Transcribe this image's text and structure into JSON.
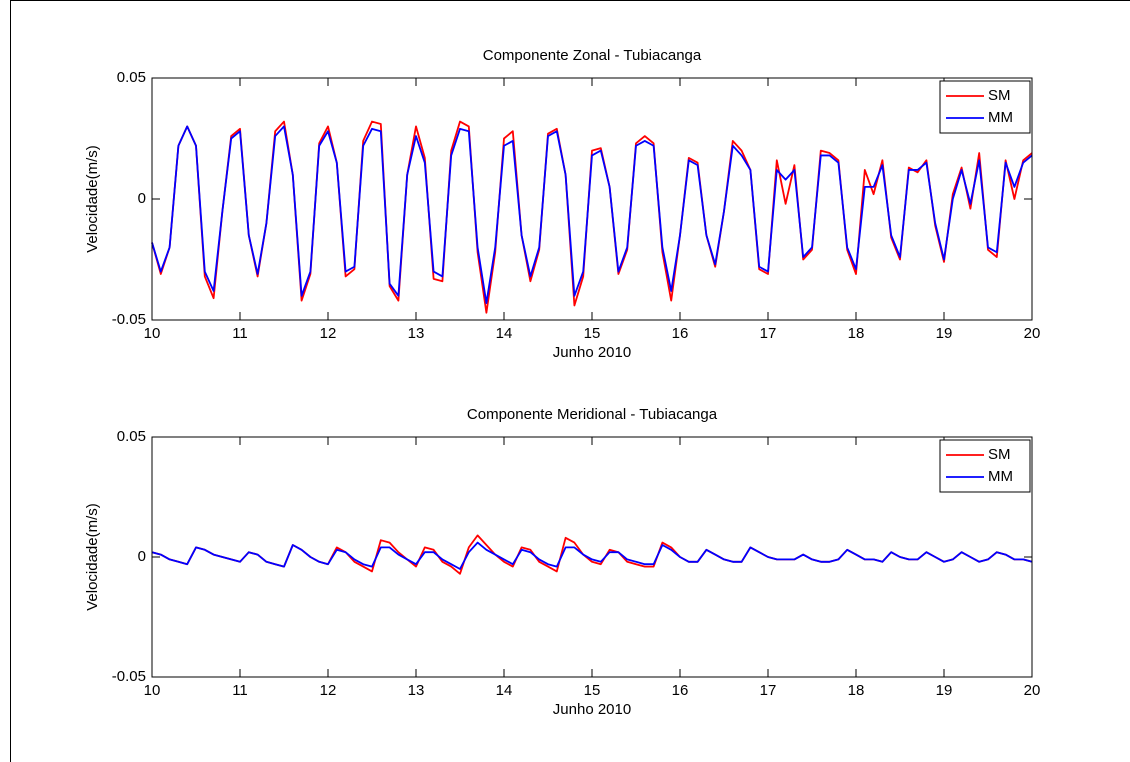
{
  "chart_data": [
    {
      "type": "line",
      "title": "Componente Zonal - Tubiacanga",
      "xlabel": "Junho 2010",
      "ylabel": "Velocidade(m/s)",
      "x": [
        10.0,
        10.1,
        10.2,
        10.3,
        10.4,
        10.5,
        10.6,
        10.7,
        10.8,
        10.9,
        11.0,
        11.1,
        11.2,
        11.3,
        11.4,
        11.5,
        11.6,
        11.7,
        11.8,
        11.9,
        12.0,
        12.1,
        12.2,
        12.3,
        12.4,
        12.5,
        12.6,
        12.7,
        12.8,
        12.9,
        13.0,
        13.1,
        13.2,
        13.3,
        13.4,
        13.5,
        13.6,
        13.7,
        13.8,
        13.9,
        14.0,
        14.1,
        14.2,
        14.3,
        14.4,
        14.5,
        14.6,
        14.7,
        14.8,
        14.9,
        15.0,
        15.1,
        15.2,
        15.3,
        15.4,
        15.5,
        15.6,
        15.7,
        15.8,
        15.9,
        16.0,
        16.1,
        16.2,
        16.3,
        16.4,
        16.5,
        16.6,
        16.7,
        16.8,
        16.9,
        17.0,
        17.1,
        17.2,
        17.3,
        17.4,
        17.5,
        17.6,
        17.7,
        17.8,
        17.9,
        18.0,
        18.1,
        18.2,
        18.3,
        18.4,
        18.5,
        18.6,
        18.7,
        18.8,
        18.9,
        19.0,
        19.1,
        19.2,
        19.3,
        19.4,
        19.5,
        19.6,
        19.7,
        19.8,
        19.9,
        20.0
      ],
      "series": [
        {
          "name": "SM",
          "color": "#ff0000",
          "values": [
            -0.018,
            -0.031,
            -0.02,
            0.022,
            0.03,
            0.022,
            -0.032,
            -0.041,
            -0.005,
            0.026,
            0.029,
            -0.015,
            -0.032,
            -0.01,
            0.028,
            0.032,
            0.01,
            -0.042,
            -0.031,
            0.023,
            0.03,
            0.015,
            -0.032,
            -0.029,
            0.024,
            0.032,
            0.031,
            -0.036,
            -0.042,
            0.01,
            0.03,
            0.017,
            -0.033,
            -0.034,
            0.02,
            0.032,
            0.03,
            -0.022,
            -0.047,
            -0.022,
            0.025,
            0.028,
            -0.015,
            -0.034,
            -0.021,
            0.027,
            0.029,
            0.01,
            -0.044,
            -0.032,
            0.02,
            0.021,
            0.005,
            -0.031,
            -0.021,
            0.023,
            0.026,
            0.023,
            -0.022,
            -0.042,
            -0.015,
            0.017,
            0.015,
            -0.015,
            -0.028,
            -0.005,
            0.024,
            0.02,
            0.012,
            -0.029,
            -0.031,
            0.016,
            -0.002,
            0.014,
            -0.025,
            -0.021,
            0.02,
            0.019,
            0.016,
            -0.021,
            -0.031,
            0.012,
            0.002,
            0.016,
            -0.016,
            -0.025,
            0.013,
            0.011,
            0.016,
            -0.011,
            -0.026,
            0.002,
            0.013,
            -0.004,
            0.019,
            -0.021,
            -0.024,
            0.016,
            0.0,
            0.016,
            0.019
          ]
        },
        {
          "name": "MM",
          "color": "#0000ff",
          "values": [
            -0.018,
            -0.03,
            -0.02,
            0.022,
            0.03,
            0.022,
            -0.03,
            -0.038,
            -0.005,
            0.025,
            0.028,
            -0.015,
            -0.031,
            -0.01,
            0.026,
            0.03,
            0.01,
            -0.04,
            -0.03,
            0.022,
            0.028,
            0.015,
            -0.03,
            -0.028,
            0.022,
            0.029,
            0.028,
            -0.035,
            -0.04,
            0.01,
            0.026,
            0.015,
            -0.03,
            -0.032,
            0.018,
            0.029,
            0.028,
            -0.02,
            -0.043,
            -0.02,
            0.022,
            0.024,
            -0.015,
            -0.032,
            -0.02,
            0.026,
            0.028,
            0.01,
            -0.04,
            -0.03,
            0.018,
            0.02,
            0.005,
            -0.03,
            -0.02,
            0.022,
            0.024,
            0.022,
            -0.02,
            -0.038,
            -0.015,
            0.016,
            0.014,
            -0.015,
            -0.027,
            -0.005,
            0.022,
            0.018,
            0.012,
            -0.028,
            -0.03,
            0.012,
            0.008,
            0.012,
            -0.024,
            -0.02,
            0.018,
            0.018,
            0.015,
            -0.02,
            -0.029,
            0.005,
            0.005,
            0.014,
            -0.015,
            -0.024,
            0.012,
            0.012,
            0.015,
            -0.01,
            -0.025,
            0.0,
            0.012,
            -0.002,
            0.016,
            -0.02,
            -0.022,
            0.015,
            0.005,
            0.015,
            0.018
          ]
        }
      ],
      "xlim": [
        10,
        20
      ],
      "ylim": [
        -0.05,
        0.05
      ],
      "xticks": [
        10,
        11,
        12,
        13,
        14,
        15,
        16,
        17,
        18,
        19,
        20
      ],
      "yticks": [
        -0.05,
        0,
        0.05
      ],
      "legend": "upper right"
    },
    {
      "type": "line",
      "title": "Componente Meridional - Tubiacanga",
      "xlabel": "Junho 2010",
      "ylabel": "Velocidade(m/s)",
      "x": [
        10.0,
        10.1,
        10.2,
        10.3,
        10.4,
        10.5,
        10.6,
        10.7,
        10.8,
        10.9,
        11.0,
        11.1,
        11.2,
        11.3,
        11.4,
        11.5,
        11.6,
        11.7,
        11.8,
        11.9,
        12.0,
        12.1,
        12.2,
        12.3,
        12.4,
        12.5,
        12.6,
        12.7,
        12.8,
        12.9,
        13.0,
        13.1,
        13.2,
        13.3,
        13.4,
        13.5,
        13.6,
        13.7,
        13.8,
        13.9,
        14.0,
        14.1,
        14.2,
        14.3,
        14.4,
        14.5,
        14.6,
        14.7,
        14.8,
        14.9,
        15.0,
        15.1,
        15.2,
        15.3,
        15.4,
        15.5,
        15.6,
        15.7,
        15.8,
        15.9,
        16.0,
        16.1,
        16.2,
        16.3,
        16.4,
        16.5,
        16.6,
        16.7,
        16.8,
        16.9,
        17.0,
        17.1,
        17.2,
        17.3,
        17.4,
        17.5,
        17.6,
        17.7,
        17.8,
        17.9,
        18.0,
        18.1,
        18.2,
        18.3,
        18.4,
        18.5,
        18.6,
        18.7,
        18.8,
        18.9,
        19.0,
        19.1,
        19.2,
        19.3,
        19.4,
        19.5,
        19.6,
        19.7,
        19.8,
        19.9,
        20.0
      ],
      "series": [
        {
          "name": "SM",
          "color": "#ff0000",
          "values": [
            0.002,
            0.001,
            -0.001,
            -0.002,
            -0.003,
            0.004,
            0.003,
            0.001,
            0.0,
            -0.001,
            -0.002,
            0.002,
            0.001,
            -0.002,
            -0.003,
            -0.004,
            0.005,
            0.003,
            0.0,
            -0.002,
            -0.003,
            0.004,
            0.002,
            -0.002,
            -0.004,
            -0.006,
            0.007,
            0.006,
            0.002,
            -0.001,
            -0.004,
            0.004,
            0.003,
            -0.002,
            -0.004,
            -0.007,
            0.004,
            0.009,
            0.005,
            0.001,
            -0.002,
            -0.004,
            0.004,
            0.003,
            -0.002,
            -0.004,
            -0.006,
            0.008,
            0.006,
            0.001,
            -0.002,
            -0.003,
            0.003,
            0.002,
            -0.002,
            -0.003,
            -0.004,
            -0.004,
            0.006,
            0.004,
            0.0,
            -0.002,
            -0.002,
            0.003,
            0.001,
            -0.001,
            -0.002,
            -0.002,
            0.004,
            0.002,
            0.0,
            -0.001,
            -0.001,
            -0.001,
            0.001,
            -0.001,
            -0.002,
            -0.002,
            -0.001,
            0.003,
            0.001,
            -0.001,
            -0.001,
            -0.002,
            0.002,
            0.0,
            -0.001,
            -0.001,
            0.002,
            0.0,
            -0.002,
            -0.001,
            0.002,
            0.0,
            -0.002,
            -0.001,
            0.002,
            0.001,
            -0.001,
            -0.001,
            -0.002
          ]
        },
        {
          "name": "MM",
          "color": "#0000ff",
          "values": [
            0.002,
            0.001,
            -0.001,
            -0.002,
            -0.003,
            0.004,
            0.003,
            0.001,
            0.0,
            -0.001,
            -0.002,
            0.002,
            0.001,
            -0.002,
            -0.003,
            -0.004,
            0.005,
            0.003,
            0.0,
            -0.002,
            -0.003,
            0.003,
            0.002,
            -0.001,
            -0.003,
            -0.004,
            0.004,
            0.004,
            0.001,
            -0.001,
            -0.003,
            0.002,
            0.002,
            -0.001,
            -0.003,
            -0.005,
            0.002,
            0.006,
            0.003,
            0.001,
            -0.001,
            -0.003,
            0.003,
            0.002,
            -0.001,
            -0.003,
            -0.004,
            0.004,
            0.004,
            0.001,
            -0.001,
            -0.002,
            0.002,
            0.002,
            -0.001,
            -0.002,
            -0.003,
            -0.003,
            0.005,
            0.003,
            0.0,
            -0.002,
            -0.002,
            0.003,
            0.001,
            -0.001,
            -0.002,
            -0.002,
            0.004,
            0.002,
            0.0,
            -0.001,
            -0.001,
            -0.001,
            0.001,
            -0.001,
            -0.002,
            -0.002,
            -0.001,
            0.003,
            0.001,
            -0.001,
            -0.001,
            -0.002,
            0.002,
            0.0,
            -0.001,
            -0.001,
            0.002,
            0.0,
            -0.002,
            -0.001,
            0.002,
            0.0,
            -0.002,
            -0.001,
            0.002,
            0.001,
            -0.001,
            -0.001,
            -0.002
          ]
        }
      ],
      "xlim": [
        10,
        20
      ],
      "ylim": [
        -0.05,
        0.05
      ],
      "xticks": [
        10,
        11,
        12,
        13,
        14,
        15,
        16,
        17,
        18,
        19,
        20
      ],
      "yticks": [
        -0.05,
        0,
        0.05
      ],
      "legend": "upper right"
    }
  ]
}
